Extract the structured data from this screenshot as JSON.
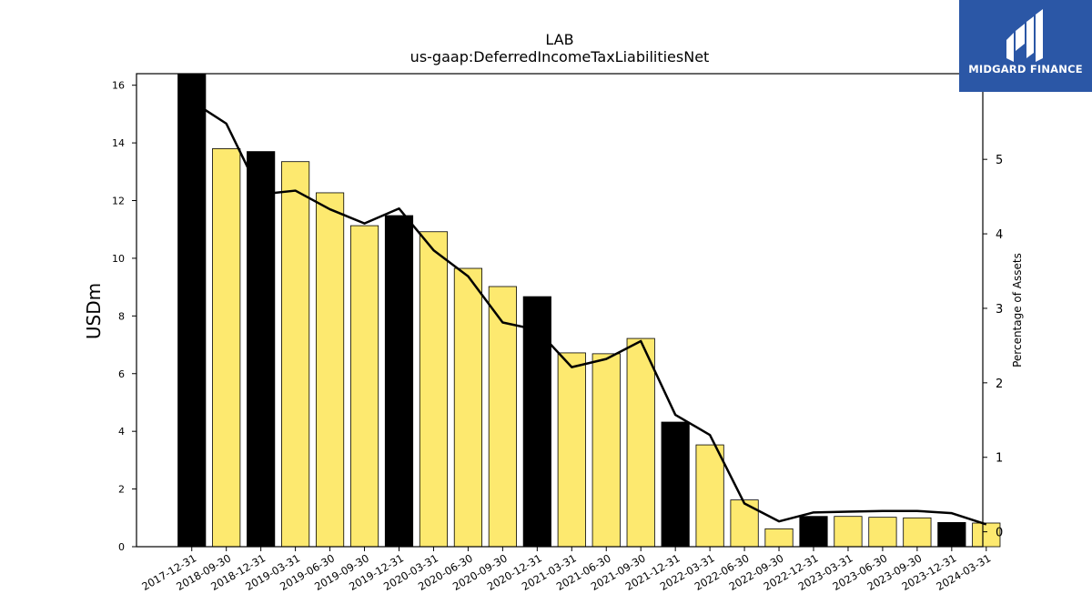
{
  "chart_data": {
    "type": "bar",
    "title": "LAB",
    "subtitle": "us-gaap:DeferredIncomeTaxLiabilitiesNet",
    "ylabel": "USDm",
    "y2label": "Percentage of Assets",
    "ylim": [
      0,
      16.4
    ],
    "y2lim": [
      -0.2,
      6.15
    ],
    "yticks": [
      0,
      2,
      4,
      6,
      8,
      10,
      12,
      14,
      16
    ],
    "y2ticks": [
      0,
      1,
      2,
      3,
      4,
      5
    ],
    "categories": [
      "2017-12-31",
      "2018-09-30",
      "2018-12-31",
      "2019-03-31",
      "2019-06-30",
      "2019-09-30",
      "2019-12-31",
      "2020-03-31",
      "2020-06-30",
      "2020-09-30",
      "2020-12-31",
      "2021-03-31",
      "2021-06-30",
      "2021-09-30",
      "2021-12-31",
      "2022-03-31",
      "2022-06-30",
      "2022-09-30",
      "2022-12-31",
      "2023-03-31",
      "2023-06-30",
      "2023-09-30",
      "2023-12-31",
      "2024-03-31"
    ],
    "series": [
      {
        "kind": "bar",
        "values": [
          16.4,
          13.8,
          13.7,
          13.35,
          12.27,
          11.13,
          11.48,
          10.92,
          9.65,
          9.02,
          8.67,
          6.72,
          6.69,
          7.22,
          4.32,
          3.53,
          1.62,
          0.62,
          1.05,
          1.05,
          1.02,
          1.0,
          0.84,
          0.82
        ],
        "highlight": [
          true,
          false,
          true,
          false,
          false,
          false,
          true,
          false,
          false,
          false,
          true,
          false,
          false,
          false,
          true,
          false,
          false,
          false,
          true,
          false,
          false,
          false,
          true,
          false
        ]
      },
      {
        "kind": "line",
        "axis": "right",
        "values": [
          5.78,
          5.48,
          4.53,
          4.58,
          4.33,
          4.14,
          4.34,
          3.78,
          3.43,
          2.81,
          2.71,
          2.21,
          2.32,
          2.56,
          1.57,
          1.3,
          0.38,
          0.14,
          0.26,
          0.27,
          0.28,
          0.28,
          0.25,
          0.1
        ]
      }
    ],
    "colors": {
      "bar": "#fde96f",
      "bar_highlight": "#000000",
      "line": "#000000"
    }
  },
  "logo": {
    "text": "MIDGARD FINANCE",
    "background": "#2b57a6"
  }
}
